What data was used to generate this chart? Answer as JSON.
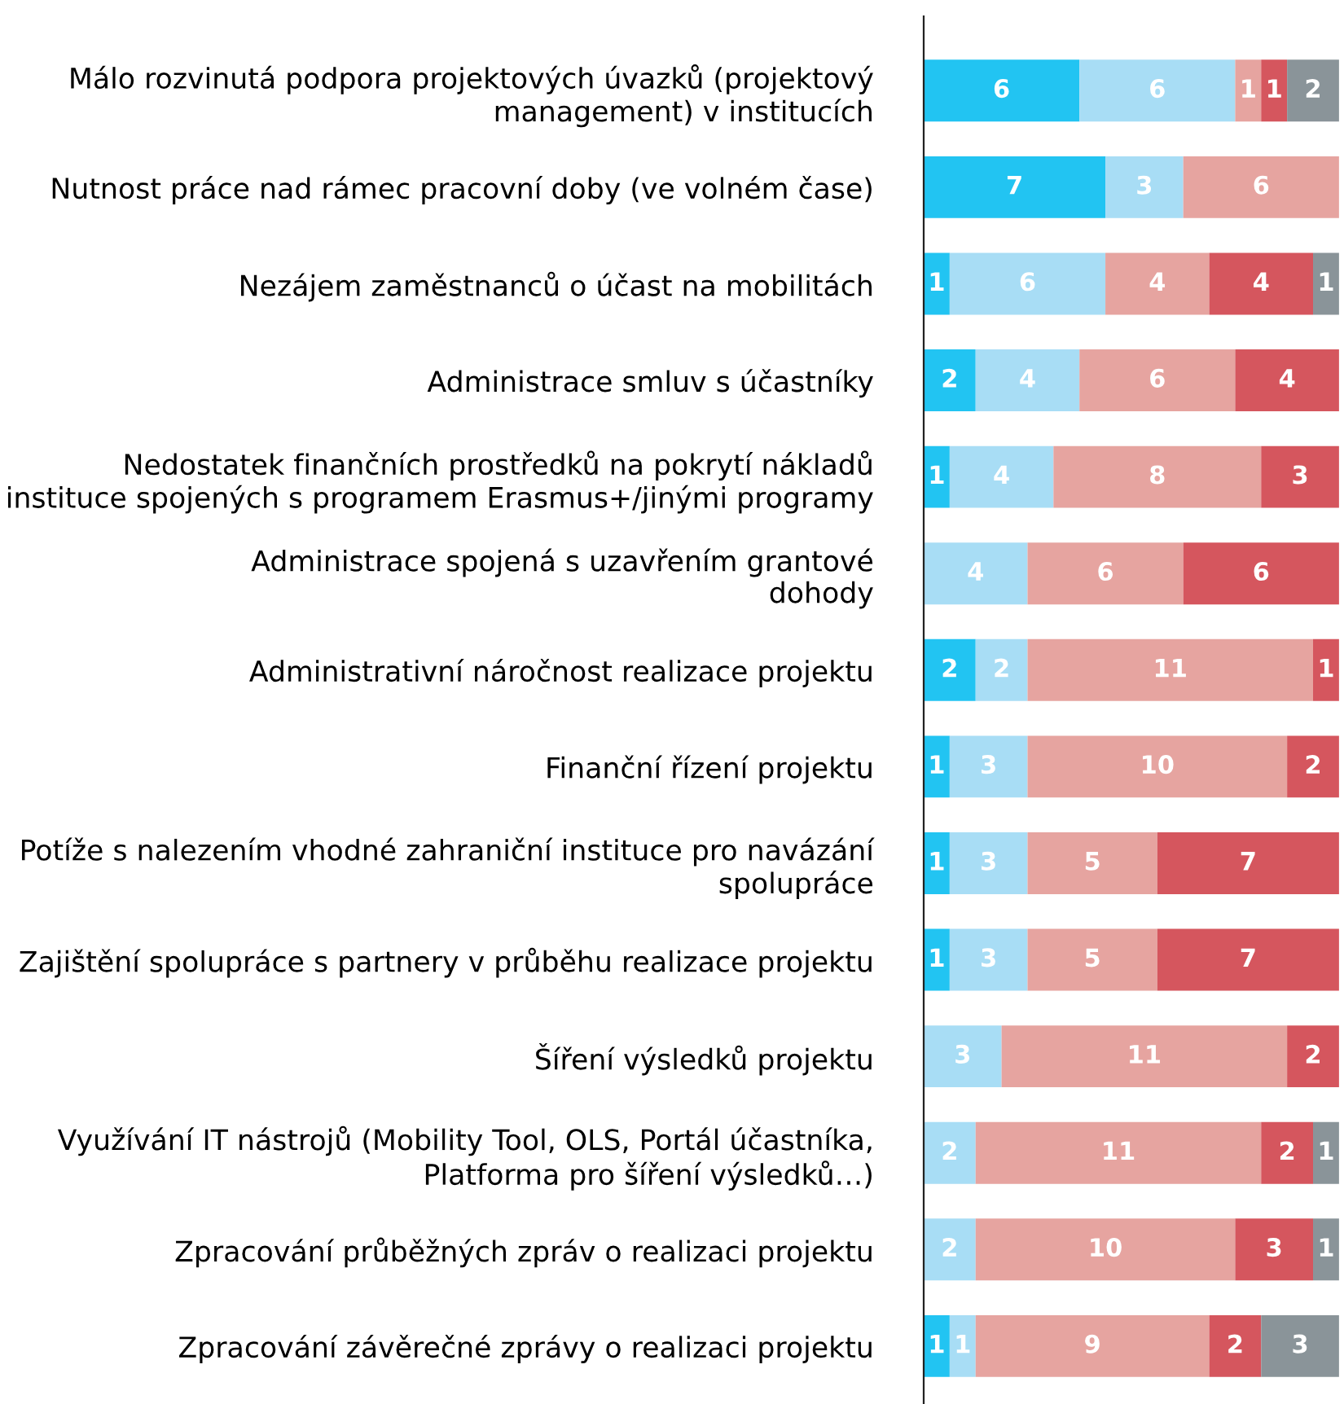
{
  "chart_data": {
    "type": "bar",
    "orientation": "horizontal",
    "stacked": true,
    "data_labels": true,
    "grid": false,
    "legend": false,
    "categories": [
      "Málo rozvinutá podpora projektových úvazků (projektový\nmanagement) v institucích",
      "Nutnost práce nad rámec pracovní doby (ve volném čase)",
      "Nezájem zaměstnanců o účast na mobilitách",
      "Administrace smluv s účastníky",
      "Nedostatek finančních prostředků na pokrytí nákladů\ninstituce spojených s programem Erasmus+/jinými programy",
      "Administrace spojená s uzavřením grantové\ndohody",
      "Administrativní náročnost realizace projektu",
      "Finanční řízení projektu",
      "Potíže s nalezením vhodné zahraniční instituce pro navázání\nspolupráce",
      "Zajištění spolupráce s partnery v průběhu realizace projektu",
      "Šíření výsledků projektu",
      "Využívání IT nástrojů (Mobility Tool, OLS, Portál účastníka,\nPlatforma pro šíření výsledků…)",
      "Zpracování průběžných zpráv o realizaci projektu",
      "Zpracování závěrečné zprávy o realizaci projektu"
    ],
    "series": [
      {
        "color": "#22c4f2",
        "values": [
          6,
          7,
          1,
          2,
          1,
          null,
          2,
          1,
          1,
          1,
          null,
          null,
          null,
          1
        ]
      },
      {
        "color": "#a8ddf5",
        "values": [
          6,
          3,
          6,
          4,
          4,
          4,
          2,
          3,
          3,
          3,
          3,
          2,
          2,
          1
        ]
      },
      {
        "color": "#e6a4a0",
        "values": [
          1,
          6,
          4,
          6,
          8,
          6,
          11,
          10,
          5,
          5,
          11,
          11,
          10,
          9
        ]
      },
      {
        "color": "#d5565e",
        "values": [
          1,
          null,
          4,
          4,
          3,
          6,
          1,
          2,
          7,
          7,
          2,
          2,
          3,
          2
        ]
      },
      {
        "color": "#8a9499",
        "values": [
          2,
          null,
          1,
          null,
          null,
          null,
          null,
          null,
          null,
          null,
          null,
          1,
          1,
          3
        ]
      }
    ]
  }
}
